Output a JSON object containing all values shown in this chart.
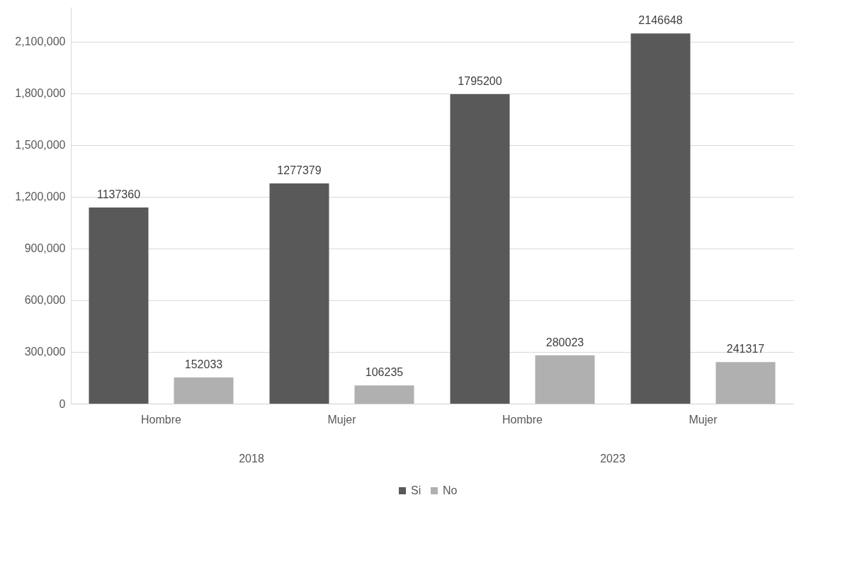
{
  "chart_data": {
    "type": "bar",
    "categories": [
      "Hombre",
      "Mujer",
      "Hombre",
      "Mujer"
    ],
    "series": [
      {
        "name": "Si",
        "color": "#595959",
        "values": [
          1137360,
          1277379,
          1795200,
          2146648
        ]
      },
      {
        "name": "No",
        "color": "#b0b0b0",
        "values": [
          152033,
          106235,
          280023,
          241317
        ]
      }
    ],
    "ylim": [
      0,
      2300000
    ],
    "yticks": [
      0,
      {
        "value": 300000,
        "label": "300,000"
      },
      {
        "value": 600000,
        "label": "600,000"
      },
      {
        "value": 900000,
        "label": "900,000"
      },
      {
        "value": 1200000,
        "label": "1,200,000"
      },
      {
        "value": 1500000,
        "label": "1,500,000"
      },
      {
        "value": 1800000,
        "label": "1,800,000"
      },
      {
        "value": 2100000,
        "label": "2,100,000"
      }
    ],
    "grid": "y",
    "legend": "bottom",
    "data_labels": true,
    "annotations": [
      "2018",
      "2023"
    ]
  }
}
